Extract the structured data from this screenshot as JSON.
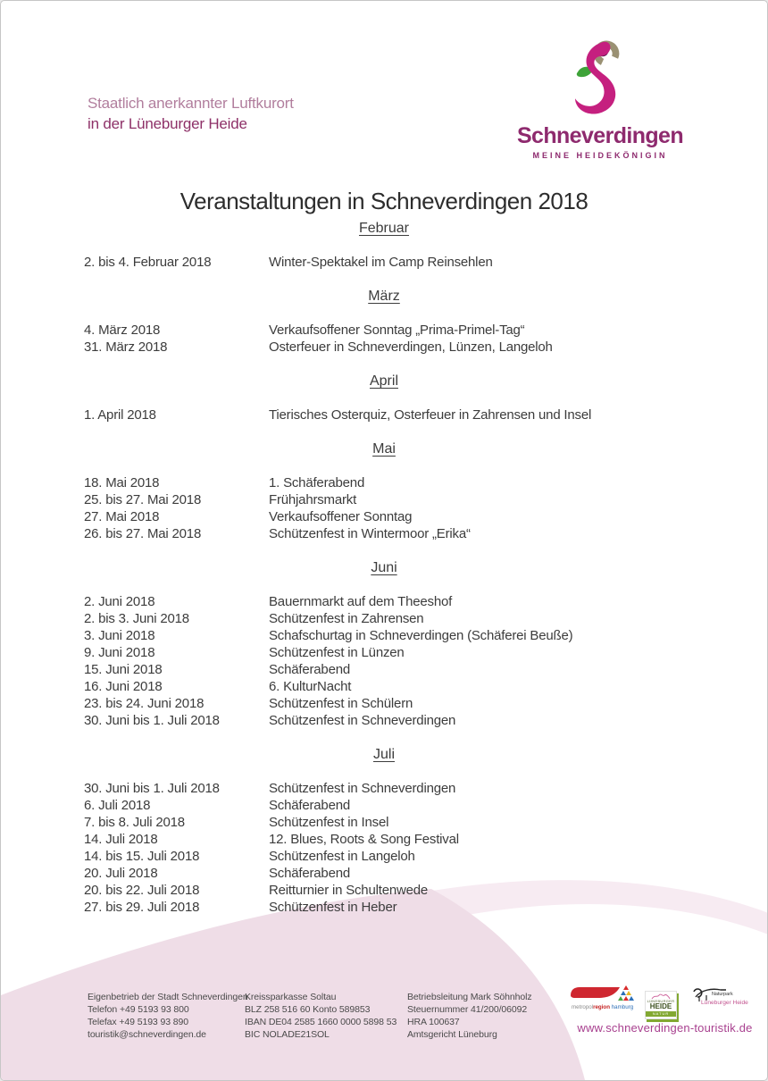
{
  "header": {
    "tagline_line1": "Staatlich anerkannter Luftkurort",
    "tagline_line2": "in der Lüneburger Heide",
    "logo_wordmark": "Schneverdingen",
    "logo_subtitle": "MEINE HEIDEKÖNIGIN",
    "title": "Veranstaltungen in Schneverdingen 2018"
  },
  "sections": [
    {
      "month": "Februar",
      "events": [
        {
          "date": "2. bis 4. Februar 2018",
          "name": "Winter-Spektakel im Camp Reinsehlen"
        }
      ]
    },
    {
      "month": "März",
      "events": [
        {
          "date": "4. März 2018",
          "name": "Verkaufsoffener Sonntag „Prima-Primel-Tag“"
        },
        {
          "date": "31. März 2018",
          "name": "Osterfeuer in Schneverdingen, Lünzen, Langeloh"
        }
      ]
    },
    {
      "month": "April",
      "events": [
        {
          "date": "1. April 2018",
          "name": "Tierisches Osterquiz, Osterfeuer in Zahrensen und Insel"
        }
      ]
    },
    {
      "month": "Mai",
      "events": [
        {
          "date": "18. Mai 2018",
          "name": "1. Schäferabend"
        },
        {
          "date": "25. bis 27. Mai 2018",
          "name": "Frühjahrsmarkt"
        },
        {
          "date": "27. Mai 2018",
          "name": "Verkaufsoffener Sonntag"
        },
        {
          "date": "26. bis 27. Mai 2018",
          "name": "Schützenfest in Wintermoor „Erika“"
        }
      ]
    },
    {
      "month": "Juni",
      "events": [
        {
          "date": "2. Juni 2018",
          "name": "Bauernmarkt auf dem Theeshof"
        },
        {
          "date": "2. bis 3. Juni 2018",
          "name": "Schützenfest in Zahrensen"
        },
        {
          "date": "3. Juni 2018",
          "name": "Schafschurtag in Schneverdingen (Schäferei Beuße)"
        },
        {
          "date": "9. Juni 2018",
          "name": "Schützenfest in Lünzen"
        },
        {
          "date": "15. Juni 2018",
          "name": "Schäferabend"
        },
        {
          "date": "16. Juni 2018",
          "name": "6. KulturNacht"
        },
        {
          "date": "23. bis 24. Juni 2018",
          "name": "Schützenfest in Schülern"
        },
        {
          "date": "30. Juni bis 1. Juli 2018",
          "name": "Schützenfest in Schneverdingen"
        }
      ]
    },
    {
      "month": "Juli",
      "events": [
        {
          "date": "30. Juni bis 1. Juli 2018",
          "name": "Schützenfest in Schneverdingen"
        },
        {
          "date": "6. Juli 2018",
          "name": "Schäferabend"
        },
        {
          "date": "7. bis 8. Juli 2018",
          "name": "Schützenfest in Insel"
        },
        {
          "date": "14. Juli 2018",
          "name": "12. Blues, Roots & Song Festival"
        },
        {
          "date": "14. bis 15. Juli 2018",
          "name": "Schützenfest in Langeloh"
        },
        {
          "date": "20. Juli 2018",
          "name": "Schäferabend"
        },
        {
          "date": "20. bis 22. Juli 2018",
          "name": "Reitturnier in Schultenwede"
        },
        {
          "date": "27. bis 29. Juli 2018",
          "name": "Schützenfest in Heber"
        }
      ]
    }
  ],
  "footer": {
    "columns": [
      {
        "lines": [
          "Eigenbetrieb der Stadt Schneverdingen",
          "Telefon +49 5193 93 800",
          "Telefax +49 5193 93 890",
          "touristik@schneverdingen.de"
        ]
      },
      {
        "lines": [
          "Kreissparkasse Soltau",
          "BLZ 258 516 60 Konto 589853",
          "IBAN DE04 2585 1660 0000 5898 53",
          "BIC NOLADE21SOL"
        ]
      },
      {
        "lines": [
          "Betriebsleitung Mark Söhnholz",
          "Steuernummer 41/200/06092",
          "HRA 100637",
          "Amtsgericht Lüneburg"
        ]
      }
    ],
    "website": "www.schneverdingen-touristik.de",
    "logos": {
      "metropolregion_caption": "metropolregion hamburg",
      "heide_line1": "LÜNEBURGER",
      "heide_line2": "HEIDE",
      "heide_bar": "NATUR",
      "naturpark_line1": "Naturpark",
      "naturpark_line2": "Lüneburger Heide"
    }
  },
  "colors": {
    "wordmark_magenta": "#8e2a6e",
    "swan_magenta": "#c5207f",
    "swan_olive": "#9a9173",
    "leaf_green": "#3ea339",
    "tagline_light": "#b17e9d",
    "tagline_dark": "#8e3168",
    "swoosh_pink_main": "#efdde7",
    "swoosh_pink_light": "#f7ebf2",
    "link_magenta": "#a8408f",
    "text_dark": "#3c3c3c"
  }
}
